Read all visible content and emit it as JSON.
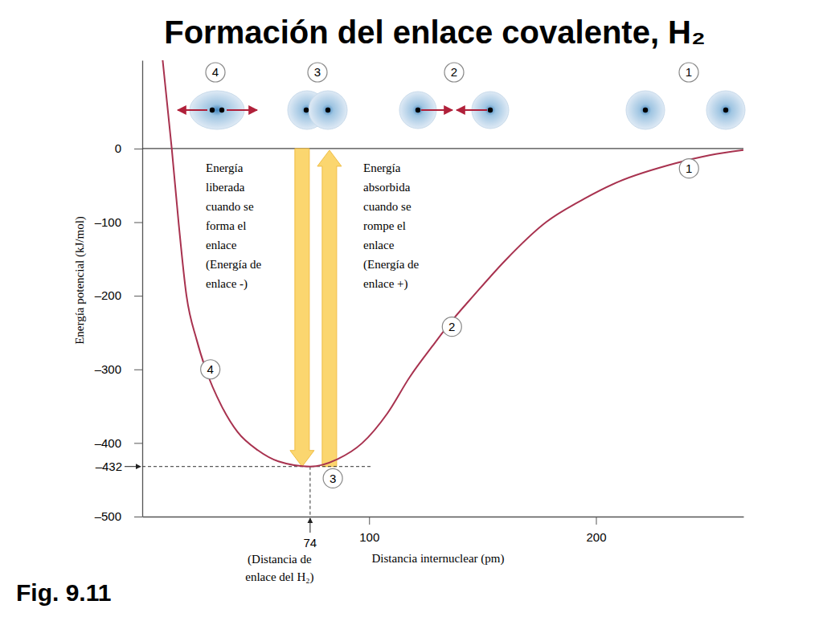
{
  "chart_data": {
    "type": "line",
    "title": "Formación del enlace covalente, H₂",
    "figure_label": "Fig. 9.11",
    "x_label": "Distancia internuclear (pm)",
    "y_label": "Energía potencial (kJ/mol)",
    "x": [
      9,
      11,
      13,
      16,
      19.5,
      24,
      28,
      35,
      42,
      51,
      60,
      74,
      86,
      97,
      108,
      118,
      128,
      137,
      146,
      160,
      178,
      195,
      210,
      235,
      250,
      265
    ],
    "values": [
      120,
      60,
      0,
      -100,
      -200,
      -260,
      -300,
      -350,
      -385,
      -410,
      -425,
      -432,
      -422,
      -400,
      -360,
      -310,
      -268,
      -232,
      -200,
      -152,
      -100,
      -68,
      -45,
      -20,
      -9,
      -2
    ],
    "color": "#a8324f",
    "xlim": [
      0,
      265
    ],
    "xticks": [
      100,
      200
    ],
    "ylim": [
      -500,
      120
    ],
    "yticks": [
      {
        "value": -500,
        "label": "–500"
      },
      {
        "value": -400,
        "label": "–400"
      },
      {
        "value": -300,
        "label": "–300"
      },
      {
        "value": -200,
        "label": "–200"
      },
      {
        "value": -100,
        "label": "–100"
      },
      0
    ],
    "grid": false,
    "minimum": {
      "x": 74,
      "y": -432,
      "x_label": "74",
      "y_label": "–432",
      "x_note": [
        "(Distancia de",
        "enlace del H₂)"
      ]
    },
    "released_text": [
      "Energía",
      "liberada",
      "cuando se",
      "forma el",
      "enlace",
      "(Energía de",
      "enlace -)"
    ],
    "absorbed_text": [
      "Energía",
      "absorbida",
      "cuando se",
      "rompe el",
      "enlace",
      "(Energía de",
      "enlace +)"
    ],
    "curve_labels": [
      {
        "label": "4",
        "x": 30,
        "y": -300
      },
      {
        "label": "3",
        "x": 84,
        "y": -448
      },
      {
        "label": "2",
        "x": 136.5,
        "y": -242
      },
      {
        "label": "1",
        "x": 241,
        "y": -27
      }
    ],
    "stages": [
      "4",
      "3",
      "2",
      "1"
    ]
  }
}
